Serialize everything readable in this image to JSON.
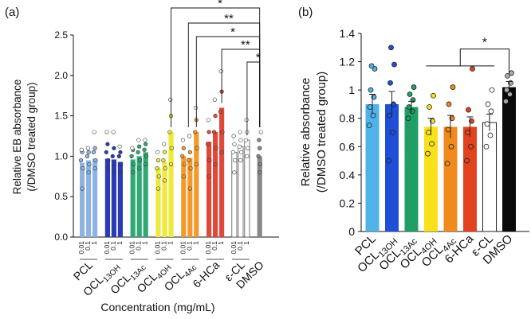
{
  "figure": {
    "panel_a_label": "(a)",
    "panel_b_label": "(b)"
  },
  "chart_data": [
    {
      "panel": "(a)",
      "type": "bar",
      "title": "",
      "ylabel_line1": "Relative EB absorbance",
      "ylabel_line2": "(/DMSO treated group)",
      "xlabel": "Concentration (mg/mL)",
      "ylim": [
        0,
        2.5
      ],
      "yticks": [
        "0.0",
        "0.5",
        "1.0",
        "1.5",
        "2.0",
        "2.5"
      ],
      "concentration_ticks": [
        "0.01",
        "0.1",
        "1"
      ],
      "groups": [
        {
          "label": "PCL",
          "sub": "",
          "color": "#8db4e0",
          "values": [
            0.92,
            0.95,
            0.97
          ],
          "points": [
            [
              0.6,
              0.85,
              0.95,
              1.05,
              1.08
            ],
            [
              0.8,
              0.9,
              1.0,
              1.05,
              1.1
            ],
            [
              0.85,
              0.95,
              1.05,
              1.1,
              1.3
            ]
          ]
        },
        {
          "label": "OCL",
          "sub": "13OH",
          "color": "#2a3bb8",
          "values": [
            0.97,
            0.96,
            0.93
          ],
          "points": [
            [
              0.85,
              0.95,
              1.05,
              1.15,
              1.3
            ],
            [
              0.8,
              0.9,
              1.0,
              1.1,
              1.3
            ],
            [
              0.8,
              0.9,
              1.0,
              1.05,
              1.12
            ]
          ]
        },
        {
          "label": "OCL",
          "sub": "13Ac",
          "color": "#2fa874",
          "values": [
            0.96,
            1.0,
            1.05
          ],
          "points": [
            [
              0.8,
              0.9,
              1.0,
              1.08,
              1.1
            ],
            [
              0.85,
              0.95,
              1.05,
              1.12,
              1.2
            ],
            [
              0.9,
              1.0,
              1.08,
              1.15,
              1.2
            ]
          ]
        },
        {
          "label": "OCL",
          "sub": "4OH",
          "color": "#eeea3c",
          "values": [
            0.86,
            0.93,
            1.3
          ],
          "points": [
            [
              0.6,
              0.75,
              0.85,
              0.95,
              1.05
            ],
            [
              0.7,
              0.85,
              0.95,
              1.05,
              1.15
            ],
            [
              0.9,
              1.1,
              1.3,
              1.5,
              1.7
            ]
          ]
        },
        {
          "label": "OCL",
          "sub": "4Ac",
          "color": "#f39a2c",
          "values": [
            1.0,
            0.98,
            1.3
          ],
          "points": [
            [
              0.75,
              0.9,
              1.0,
              1.1,
              1.2
            ],
            [
              0.6,
              0.85,
              0.95,
              1.05,
              1.25
            ],
            [
              0.9,
              1.1,
              1.3,
              1.45,
              1.6
            ]
          ]
        },
        {
          "label": "6-HCa",
          "sub": "",
          "color": "#e0483a",
          "values": [
            1.18,
            1.3,
            1.6
          ],
          "points": [
            [
              0.75,
              0.95,
              1.15,
              1.3,
              1.45
            ],
            [
              0.9,
              1.1,
              1.3,
              1.5,
              1.7
            ],
            [
              1.05,
              1.3,
              1.55,
              1.8,
              2.05
            ]
          ]
        },
        {
          "label": "ε-CL",
          "sub": "",
          "color": "#ffffff",
          "values": [
            1.05,
            1.12,
            1.2
          ],
          "points": [
            [
              0.8,
              0.95,
              1.05,
              1.15,
              1.25
            ],
            [
              0.95,
              1.05,
              1.12,
              1.2,
              1.3
            ],
            [
              1.0,
              1.1,
              1.2,
              1.3,
              1.45
            ]
          ]
        },
        {
          "label": "DMSO",
          "sub": "",
          "color": "#888888",
          "values": [
            1.0
          ],
          "points": [
            [
              0.8,
              0.9,
              1.0,
              1.1,
              1.2,
              1.3
            ]
          ]
        }
      ],
      "significance": [
        "*",
        "**",
        "*",
        "**",
        "*"
      ]
    },
    {
      "panel": "(b)",
      "type": "bar",
      "title": "",
      "ylabel_line1": "Relative absorbance",
      "ylabel_line2": "(/DMSO treated group)",
      "ylim": [
        0,
        1.4
      ],
      "yticks": [
        "0",
        "0.2",
        "0.4",
        "0.6",
        "0.8",
        "1",
        "1.2",
        "1.4"
      ],
      "categories": [
        {
          "label": "PCL",
          "sub": ""
        },
        {
          "label": "OCL",
          "sub": "13OH"
        },
        {
          "label": "OCL",
          "sub": "13Ac"
        },
        {
          "label": "OCL",
          "sub": "4OH"
        },
        {
          "label": "OCL",
          "sub": "4Ac"
        },
        {
          "label": "6-HCa",
          "sub": ""
        },
        {
          "label": "ε-CL",
          "sub": ""
        },
        {
          "label": "DMSO",
          "sub": ""
        }
      ],
      "values": [
        0.9,
        0.9,
        0.88,
        0.74,
        0.74,
        0.74,
        0.77,
        1.02
      ],
      "errors": [
        0.07,
        0.09,
        0.04,
        0.06,
        0.08,
        0.07,
        0.06,
        0.04
      ],
      "colors": [
        "#4fb3e8",
        "#1f4fd6",
        "#1f9f66",
        "#f7e11a",
        "#f08a1d",
        "#e2431f",
        "#ffffff",
        "#0a0a0a"
      ],
      "points": [
        [
          0.75,
          0.82,
          0.88,
          0.95,
          1.0,
          1.15,
          1.17
        ],
        [
          0.5,
          0.7,
          0.82,
          0.9,
          1.05,
          1.18,
          1.3
        ],
        [
          0.8,
          0.85,
          0.88,
          0.93,
          0.97,
          1.02
        ],
        [
          0.55,
          0.62,
          0.7,
          0.78,
          0.88,
          0.96
        ],
        [
          0.48,
          0.6,
          0.72,
          0.8,
          0.9,
          1.02
        ],
        [
          0.5,
          0.6,
          0.7,
          0.78,
          0.86,
          1.15
        ],
        [
          0.6,
          0.68,
          0.76,
          0.85,
          0.9,
          1.0
        ],
        [
          0.92,
          0.97,
          1.0,
          1.05,
          1.1,
          1.12
        ]
      ],
      "significance": [
        "*"
      ]
    }
  ]
}
